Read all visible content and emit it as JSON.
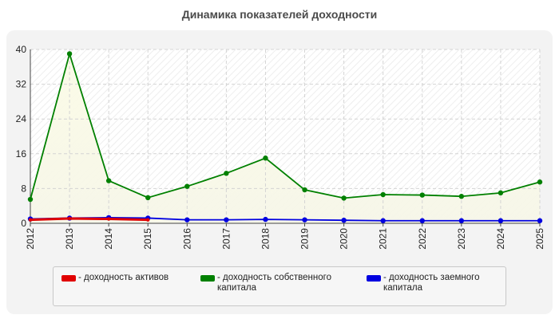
{
  "chart_data": {
    "type": "line",
    "title": "Динамика показателей доходности",
    "xlabel": "",
    "ylabel": "",
    "categories": [
      "2012",
      "2013",
      "2014",
      "2015",
      "2016",
      "2017",
      "2018",
      "2019",
      "2020",
      "2021",
      "2022",
      "2023",
      "2024",
      "2025"
    ],
    "ylim": [
      0,
      40
    ],
    "yticks": [
      0,
      8,
      16,
      24,
      32,
      40
    ],
    "grid": true,
    "legend_position": "bottom",
    "series": [
      {
        "name": "- доходность активов",
        "color": "#e00000",
        "values": [
          0.8,
          1.1,
          1.0,
          0.8,
          null,
          null,
          null,
          null,
          null,
          null,
          null,
          null,
          null,
          null
        ]
      },
      {
        "name": "- доходность собственного капитала",
        "color": "#008000",
        "values": [
          5.5,
          39.0,
          9.8,
          5.9,
          8.5,
          11.5,
          15.0,
          7.7,
          5.8,
          6.6,
          6.5,
          6.2,
          7.0,
          9.5
        ]
      },
      {
        "name": "- доходность заемного капитала",
        "color": "#0000e0",
        "values": [
          1.0,
          1.2,
          1.3,
          1.2,
          0.8,
          0.8,
          0.9,
          0.8,
          0.7,
          0.6,
          0.6,
          0.6,
          0.6,
          0.6
        ]
      }
    ]
  }
}
